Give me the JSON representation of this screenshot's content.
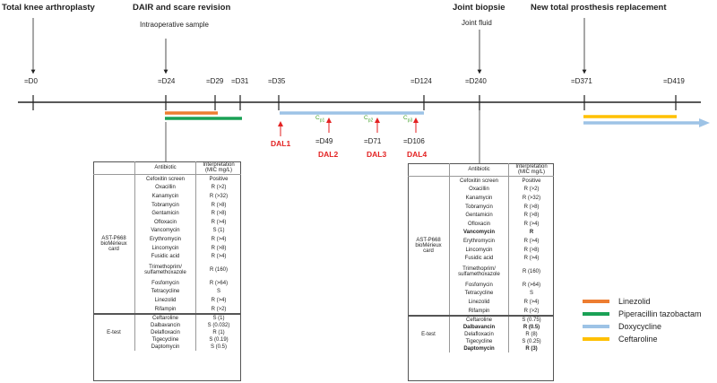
{
  "events": [
    {
      "title": "Total knee arthroplasty",
      "sub": ""
    },
    {
      "title": "DAIR and scare revision",
      "sub": "Intraoperative sample"
    },
    {
      "title": "Joint biopsie",
      "sub": "Joint fluid"
    },
    {
      "title": "New total prosthesis replacement",
      "sub": ""
    }
  ],
  "days": [
    "=D0",
    "=D24",
    "=D29",
    "=D31",
    "=D35",
    "=D124",
    "=D240",
    "=D371",
    "=D419"
  ],
  "days_below": [
    "=D49",
    "=D71",
    "=D106"
  ],
  "dal_labels": [
    "DAL1",
    "DAL2",
    "DAL3",
    "DAL4"
  ],
  "cp_labels": [
    {
      "base": "C",
      "sub": "p1"
    },
    {
      "base": "C",
      "sub": "p2"
    },
    {
      "base": "C",
      "sub": "p3"
    }
  ],
  "legend": [
    {
      "label": "Linezolid",
      "color": "#ed7d31"
    },
    {
      "label": "Piperacillin tazobactam",
      "color": "#1aa155"
    },
    {
      "label": "Doxycycline",
      "color": "#9dc3e6"
    },
    {
      "label": "Ceftaroline",
      "color": "#ffc000"
    }
  ],
  "table_header": {
    "antibiotic": "Antibiotic",
    "interpretation": "Interpretation (MIC mg/L)"
  },
  "groups": {
    "ast": "AST-P668 bioMérieux card",
    "etest": "E-test"
  },
  "table1": {
    "ast": [
      {
        "ab": "Cefoxitin screen",
        "val": "Positive"
      },
      {
        "ab": "Oxacillin",
        "val": "R (>2)"
      },
      {
        "ab": "Kanamycin",
        "val": "R (>32)"
      },
      {
        "ab": "Tobramycin",
        "val": "R (>8)"
      },
      {
        "ab": "Gentamicin",
        "val": "R (>8)"
      },
      {
        "ab": "Ofloxacin",
        "val": "R (>4)"
      },
      {
        "ab": "Vancomycin",
        "val": "S (1)"
      },
      {
        "ab": "Erythromycin",
        "val": "R (>4)"
      },
      {
        "ab": "Lincomycin",
        "val": "R (>8)"
      },
      {
        "ab": "Fusidic acid",
        "val": "R (>4)"
      },
      {
        "ab": "Trimethoprim/ sulfamethoxazole",
        "val": "R (160)"
      },
      {
        "ab": "Fosfomycin",
        "val": "R (>64)"
      },
      {
        "ab": "Tetracycline",
        "val": "S"
      },
      {
        "ab": "Linezolid",
        "val": "R (>4)"
      },
      {
        "ab": "Rifampin",
        "val": "R (>2)"
      }
    ],
    "etest": [
      {
        "ab": "Ceftaroline",
        "val": "S (1)"
      },
      {
        "ab": "Dalbavancin",
        "val": "S (0.032)"
      },
      {
        "ab": "Delafloxacin",
        "val": "R (1)"
      },
      {
        "ab": "Tigecycline",
        "val": "S (0.19)"
      },
      {
        "ab": "Daptomycin",
        "val": "S (0.5)"
      }
    ]
  },
  "table2": {
    "ast": [
      {
        "ab": "Cefoxitin screen",
        "val": "Positive"
      },
      {
        "ab": "Oxacillin",
        "val": "R (>2)"
      },
      {
        "ab": "Kanamycin",
        "val": "R (>32)"
      },
      {
        "ab": "Tobramycin",
        "val": "R (>8)"
      },
      {
        "ab": "Gentamicin",
        "val": "R (>8)"
      },
      {
        "ab": "Ofloxacin",
        "val": "R (>4)"
      },
      {
        "ab": "Vancomycin",
        "val": "R",
        "bold": true
      },
      {
        "ab": "Erythromycin",
        "val": "R (>4)"
      },
      {
        "ab": "Lincomycin",
        "val": "R (>8)"
      },
      {
        "ab": "Fusidic acid",
        "val": "R (>4)"
      },
      {
        "ab": "Trimethoprim/ sulfamethoxazole",
        "val": "R (160)"
      },
      {
        "ab": "Fosfomycin",
        "val": "R (>64)"
      },
      {
        "ab": "Tetracycline",
        "val": "S"
      },
      {
        "ab": "Linezolid",
        "val": "R (>4)"
      },
      {
        "ab": "Rifampin",
        "val": "R (>2)"
      }
    ],
    "etest": [
      {
        "ab": "Ceftaroline",
        "val": "S (0.75)"
      },
      {
        "ab": "Dalbavancin",
        "val": "R (0.5)",
        "bold": true
      },
      {
        "ab": "Delafloxacin",
        "val": "R (8)"
      },
      {
        "ab": "Tigecycline",
        "val": "S (0.25)"
      },
      {
        "ab": "Daptomycin",
        "val": "R (3)",
        "bold": true
      }
    ]
  }
}
